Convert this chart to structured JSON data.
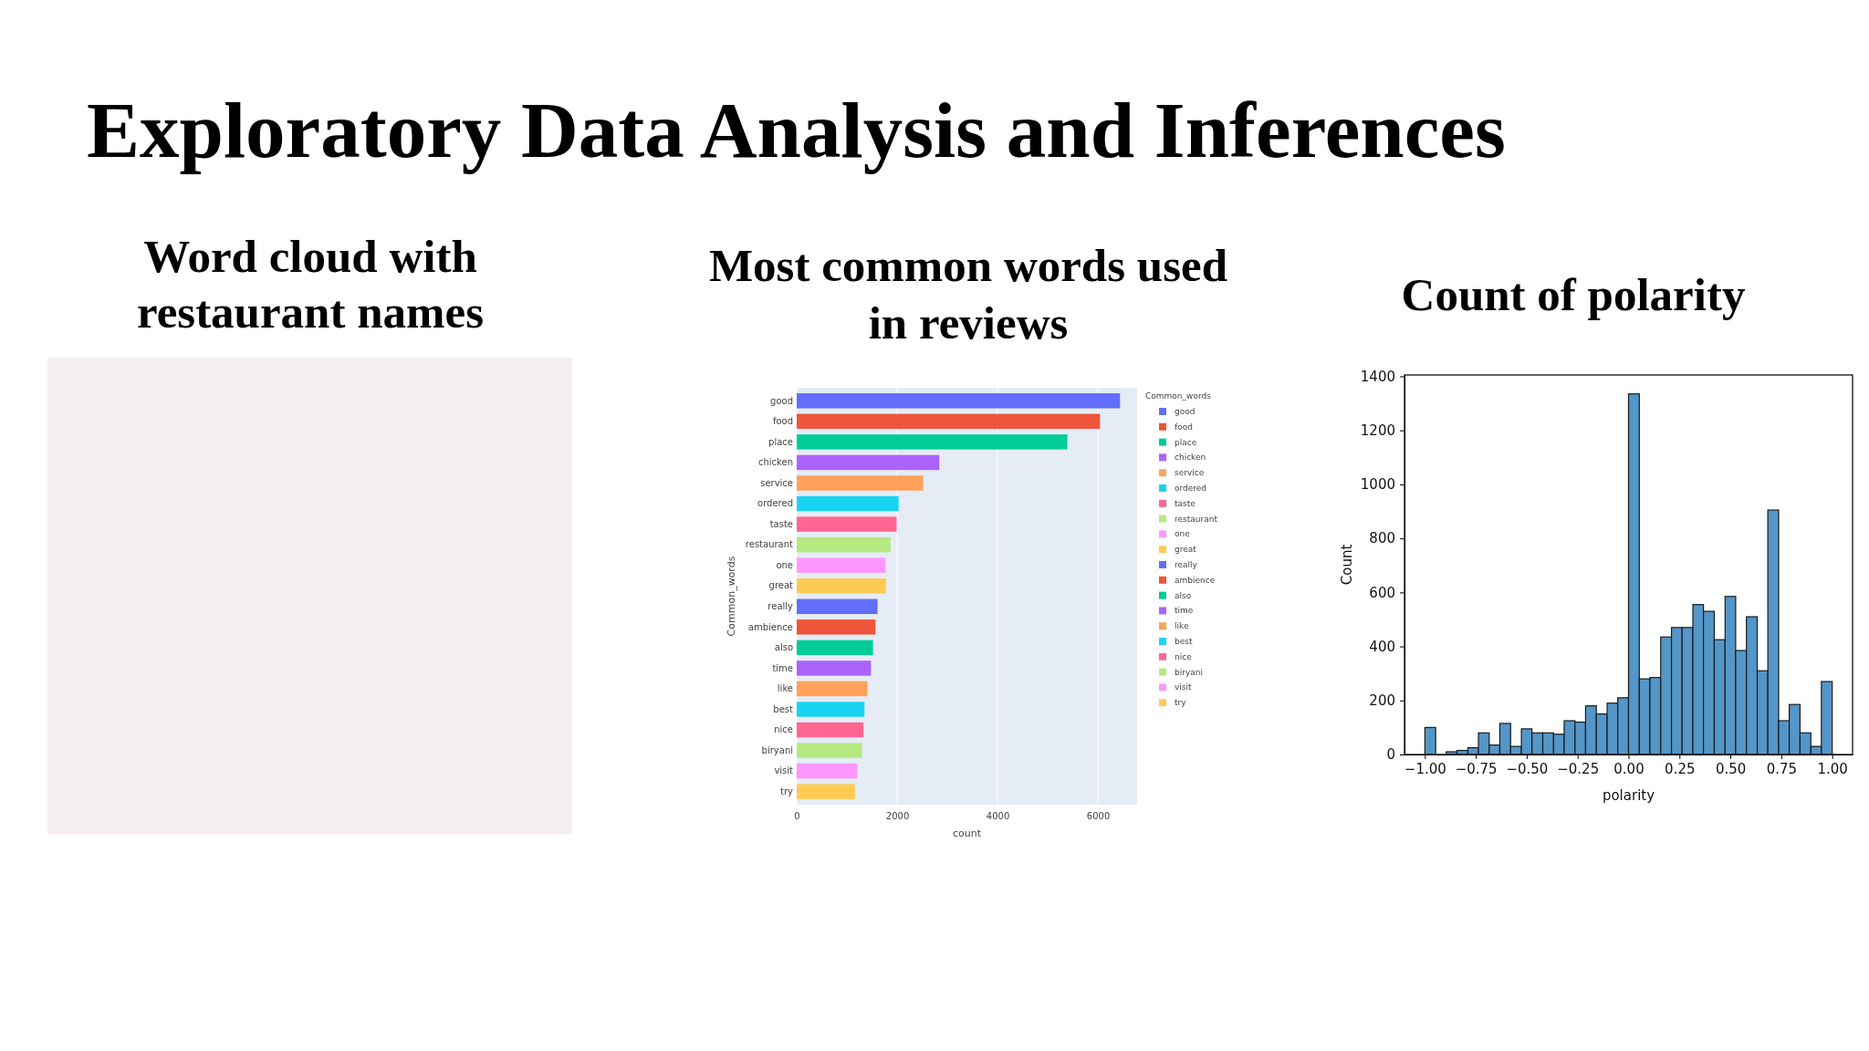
{
  "chart_data": [
    {
      "type": "other",
      "title": "Exploratory Data Analysis and Inferences"
    },
    {
      "type": "other",
      "title": "Word cloud with restaurant names"
    },
    {
      "type": "bar",
      "title": "Most common words used in reviews",
      "orientation": "horizontal",
      "stacked": true,
      "categories": [
        "good",
        "food",
        "place",
        "chicken",
        "service",
        "ordered",
        "taste",
        "restaurant",
        "one",
        "great",
        "really",
        "ambience",
        "also",
        "time",
        "like",
        "best",
        "nice",
        "biryani",
        "visit",
        "try"
      ],
      "series": [
        {
          "name": "good",
          "color": "#636efa",
          "values": [
            6440,
            null,
            null,
            null,
            null,
            null,
            null,
            null,
            null,
            null,
            null,
            null,
            null,
            null,
            null,
            null,
            null,
            null,
            null,
            null
          ]
        },
        {
          "name": "food",
          "color": "#ef553b",
          "values": [
            null,
            6040,
            null,
            null,
            null,
            null,
            null,
            null,
            null,
            null,
            null,
            null,
            null,
            null,
            null,
            null,
            null,
            null,
            null,
            null
          ]
        },
        {
          "name": "place",
          "color": "#00cc96",
          "values": [
            null,
            null,
            5390,
            null,
            null,
            null,
            null,
            null,
            null,
            null,
            null,
            null,
            null,
            null,
            null,
            null,
            null,
            null,
            null,
            null
          ]
        },
        {
          "name": "chicken",
          "color": "#ab63fa",
          "values": [
            null,
            null,
            null,
            2840,
            null,
            null,
            null,
            null,
            null,
            null,
            null,
            null,
            null,
            null,
            null,
            null,
            null,
            null,
            null,
            null
          ]
        },
        {
          "name": "service",
          "color": "#ffa15a",
          "values": [
            null,
            null,
            null,
            null,
            2520,
            null,
            null,
            null,
            null,
            null,
            null,
            null,
            null,
            null,
            null,
            null,
            null,
            null,
            null,
            null
          ]
        },
        {
          "name": "ordered",
          "color": "#19d3f3",
          "values": [
            null,
            null,
            null,
            null,
            null,
            2030,
            null,
            null,
            null,
            null,
            null,
            null,
            null,
            null,
            null,
            null,
            null,
            null,
            null,
            null
          ]
        },
        {
          "name": "taste",
          "color": "#ff6692",
          "values": [
            null,
            null,
            null,
            null,
            null,
            null,
            1990,
            null,
            null,
            null,
            null,
            null,
            null,
            null,
            null,
            null,
            null,
            null,
            null,
            null
          ]
        },
        {
          "name": "restaurant",
          "color": "#b6e880",
          "values": [
            null,
            null,
            null,
            null,
            null,
            null,
            null,
            1870,
            null,
            null,
            null,
            null,
            null,
            null,
            null,
            null,
            null,
            null,
            null,
            null
          ]
        },
        {
          "name": "one",
          "color": "#ff97ff",
          "values": [
            null,
            null,
            null,
            null,
            null,
            null,
            null,
            null,
            1770,
            null,
            null,
            null,
            null,
            null,
            null,
            null,
            null,
            null,
            null,
            null
          ]
        },
        {
          "name": "great",
          "color": "#fecb52",
          "values": [
            null,
            null,
            null,
            null,
            null,
            null,
            null,
            null,
            null,
            1780,
            null,
            null,
            null,
            null,
            null,
            null,
            null,
            null,
            null,
            null
          ]
        },
        {
          "name": "really",
          "color": "#636efa",
          "values": [
            null,
            null,
            null,
            null,
            null,
            null,
            null,
            null,
            null,
            null,
            1610,
            null,
            null,
            null,
            null,
            null,
            null,
            null,
            null,
            null
          ]
        },
        {
          "name": "ambience",
          "color": "#ef553b",
          "values": [
            null,
            null,
            null,
            null,
            null,
            null,
            null,
            null,
            null,
            null,
            null,
            1570,
            null,
            null,
            null,
            null,
            null,
            null,
            null,
            null
          ]
        },
        {
          "name": "also",
          "color": "#00cc96",
          "values": [
            null,
            null,
            null,
            null,
            null,
            null,
            null,
            null,
            null,
            null,
            null,
            null,
            1520,
            null,
            null,
            null,
            null,
            null,
            null,
            null
          ]
        },
        {
          "name": "time",
          "color": "#ab63fa",
          "values": [
            null,
            null,
            null,
            null,
            null,
            null,
            null,
            null,
            null,
            null,
            null,
            null,
            null,
            1480,
            null,
            null,
            null,
            null,
            null,
            null
          ]
        },
        {
          "name": "like",
          "color": "#ffa15a",
          "values": [
            null,
            null,
            null,
            null,
            null,
            null,
            null,
            null,
            null,
            null,
            null,
            null,
            null,
            null,
            1410,
            null,
            null,
            null,
            null,
            null
          ]
        },
        {
          "name": "best",
          "color": "#19d3f3",
          "values": [
            null,
            null,
            null,
            null,
            null,
            null,
            null,
            null,
            null,
            null,
            null,
            null,
            null,
            null,
            null,
            1350,
            null,
            null,
            null,
            null
          ]
        },
        {
          "name": "nice",
          "color": "#ff6692",
          "values": [
            null,
            null,
            null,
            null,
            null,
            null,
            null,
            null,
            null,
            null,
            null,
            null,
            null,
            null,
            null,
            null,
            1330,
            null,
            null,
            null
          ]
        },
        {
          "name": "biryani",
          "color": "#b6e880",
          "values": [
            null,
            null,
            null,
            null,
            null,
            null,
            null,
            null,
            null,
            null,
            null,
            null,
            null,
            null,
            null,
            null,
            null,
            1300,
            null,
            null
          ]
        },
        {
          "name": "visit",
          "color": "#ff97ff",
          "values": [
            null,
            null,
            null,
            null,
            null,
            null,
            null,
            null,
            null,
            null,
            null,
            null,
            null,
            null,
            null,
            null,
            null,
            null,
            1210,
            null
          ]
        },
        {
          "name": "try",
          "color": "#fecb52",
          "values": [
            null,
            null,
            null,
            null,
            null,
            null,
            null,
            null,
            null,
            null,
            null,
            null,
            null,
            null,
            null,
            null,
            null,
            null,
            null,
            1160
          ]
        }
      ],
      "xlim": [
        0,
        6780
      ],
      "xticks": [
        0,
        2000,
        4000,
        6000
      ],
      "xlabel": "count",
      "ylabel": "Common_words",
      "legend_title": "Common_words",
      "legend": "right",
      "grid": "x"
    },
    {
      "type": "histogram",
      "title": "Count of polarity",
      "bins": [
        -1,
        -0.947,
        -0.895,
        -0.842,
        -0.789,
        -0.737,
        -0.684,
        -0.632,
        -0.579,
        -0.526,
        -0.474,
        -0.421,
        -0.368,
        -0.316,
        -0.263,
        -0.211,
        -0.158,
        -0.105,
        -0.053,
        0,
        0.053,
        0.105,
        0.158,
        0.211,
        0.263,
        0.316,
        0.368,
        0.421,
        0.474,
        0.526,
        0.579,
        0.632,
        0.684,
        0.737,
        0.789,
        0.842,
        0.895,
        0.947,
        1
      ],
      "values": [
        100,
        0,
        10,
        15,
        25,
        80,
        35,
        115,
        30,
        95,
        80,
        80,
        75,
        125,
        120,
        180,
        150,
        190,
        210,
        1335,
        280,
        285,
        435,
        470,
        470,
        555,
        530,
        425,
        585,
        385,
        510,
        310,
        905,
        125,
        185,
        80,
        30,
        270
      ],
      "color": "#5496c8",
      "xlim": [
        -1.1,
        1.1
      ],
      "ylim": [
        0,
        1405
      ],
      "xticks": [
        {
          "value": -1,
          "label": "−1.00"
        },
        {
          "value": -0.75,
          "label": "−0.75"
        },
        {
          "value": -0.5,
          "label": "−0.50"
        },
        {
          "value": -0.25,
          "label": "−0.25"
        },
        {
          "value": 0,
          "label": "0.00"
        },
        {
          "value": 0.25,
          "label": "0.25"
        },
        {
          "value": 0.5,
          "label": "0.50"
        },
        {
          "value": 0.75,
          "label": "0.75"
        },
        {
          "value": 1,
          "label": "1.00"
        }
      ],
      "yticks": [
        0,
        200,
        400,
        600,
        800,
        1000,
        1200,
        1400
      ],
      "xlabel": "polarity",
      "ylabel": "Count"
    }
  ]
}
